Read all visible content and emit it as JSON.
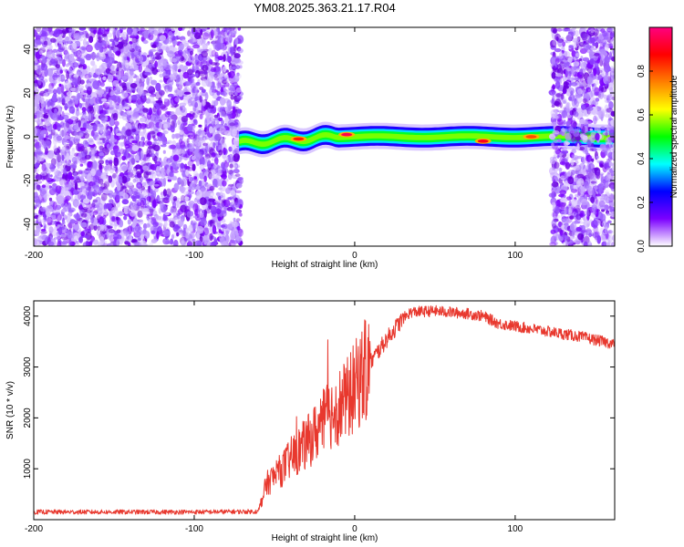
{
  "title": "YM08.2025.363.21.17.R04",
  "chart_data": [
    {
      "type": "heatmap",
      "xlabel": "Height of straight line (km)",
      "ylabel": "Frequency (Hz)",
      "xlim": [
        -200,
        162
      ],
      "ylim": [
        -50,
        50
      ],
      "xticks": [
        -200,
        -100,
        0,
        100
      ],
      "yticks": [
        -40,
        -20,
        0,
        20,
        40
      ],
      "colorbar": {
        "label": "Normalized spectral amplitude",
        "range": [
          0,
          1
        ],
        "ticks": [
          "0.0",
          "0.2",
          "0.4",
          "0.6",
          "0.8"
        ],
        "colors": [
          "#ffffff",
          "#7b00ff",
          "#0000ff",
          "#00ffff",
          "#00ff00",
          "#ffff00",
          "#ff7f00",
          "#ff0000",
          "#ff0080"
        ]
      },
      "regions": [
        {
          "kind": "noise",
          "x": [
            -200,
            -71
          ],
          "freq": [
            -50,
            50
          ],
          "amplitude": 0.1
        },
        {
          "kind": "carrier",
          "x": [
            -72,
            162
          ],
          "freq_center_start": -3,
          "freq_center_end": 0,
          "amplitude": 0.55
        },
        {
          "kind": "noise",
          "x": [
            123,
            162
          ],
          "freq": [
            -50,
            50
          ],
          "amplitude": 0.1
        }
      ],
      "peaks": [
        {
          "x": -35,
          "freq": -1,
          "amplitude": 0.85
        },
        {
          "x": -5,
          "freq": 1,
          "amplitude": 0.95
        },
        {
          "x": 80,
          "freq": -2,
          "amplitude": 0.9
        },
        {
          "x": 110,
          "freq": 0,
          "amplitude": 0.8
        }
      ]
    },
    {
      "type": "line",
      "xlabel": "Height of straight line (km)",
      "ylabel": "SNR (10 * v/v)",
      "xlim": [
        -200,
        162
      ],
      "ylim": [
        0,
        4300
      ],
      "xticks": [
        -200,
        -100,
        0,
        100
      ],
      "yticks": [
        1000,
        2000,
        3000,
        4000
      ],
      "color": "#e8382e",
      "series": [
        {
          "x": [
            -200,
            -150,
            -100,
            -60,
            -55,
            -45,
            -40,
            -30,
            -22,
            -15,
            -5,
            0,
            10,
            20,
            30,
            35,
            50,
            70,
            80,
            90,
            100,
            120,
            140,
            162
          ],
          "values": [
            150,
            150,
            150,
            160,
            700,
            1000,
            1200,
            1500,
            1800,
            2100,
            2350,
            2600,
            3100,
            3550,
            3950,
            4080,
            4100,
            4050,
            4000,
            3850,
            3800,
            3700,
            3600,
            3450
          ]
        }
      ]
    }
  ]
}
